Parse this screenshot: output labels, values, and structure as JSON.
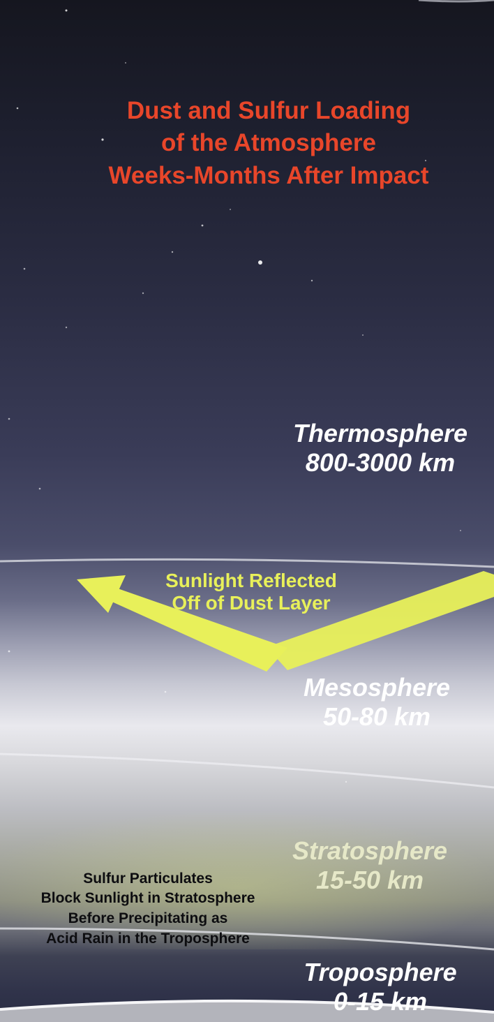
{
  "title": {
    "line1": "Dust and Sulfur Loading",
    "line2": "of the Atmosphere",
    "line3": "Weeks-Months After Impact"
  },
  "layers": {
    "thermosphere": {
      "name": "Thermosphere",
      "range": "800-3000 km"
    },
    "mesosphere": {
      "name": "Mesosphere",
      "range": "50-80 km"
    },
    "stratosphere": {
      "name": "Stratosphere",
      "range": "15-50 km"
    },
    "troposphere": {
      "name": "Troposphere",
      "range": "0-15 km"
    }
  },
  "annotations": {
    "sunlight": {
      "line1": "Sunlight Reflected",
      "line2": "Off of Dust Layer"
    },
    "sulfur": {
      "line1": "Sulfur Particulates",
      "line2": "Block Sunlight in Stratosphere",
      "line3": "Before Precipitating as",
      "line4": "Acid Rain in the Troposphere"
    }
  },
  "colors": {
    "title": "#e8462a",
    "arrow": "#e8f05a",
    "layer_label": "#ffffff",
    "stratosphere_label": "#e6e8c8",
    "annotation_text": "#0d0d10"
  }
}
